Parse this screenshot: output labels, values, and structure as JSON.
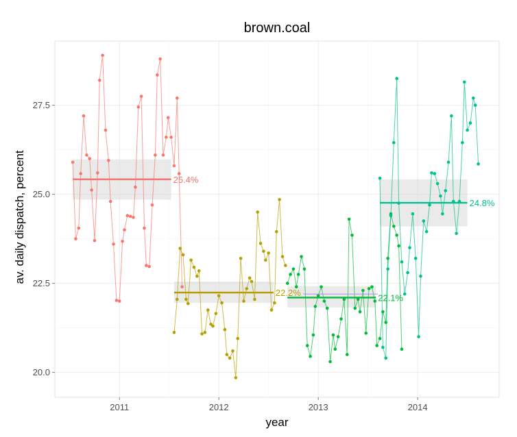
{
  "chart_data": {
    "type": "line",
    "title": "brown.coal",
    "xlabel": "year",
    "ylabel": "av. daily dispatch, percent",
    "xlim": [
      2010.35,
      2014.82
    ],
    "ylim": [
      19.3,
      29.3
    ],
    "x_ticks": [
      {
        "value": 2011,
        "label": "2011"
      },
      {
        "value": 2012,
        "label": "2012"
      },
      {
        "value": 2013,
        "label": "2013"
      },
      {
        "value": 2014,
        "label": "2014"
      }
    ],
    "y_ticks": [
      {
        "value": 20.0,
        "label": "20.0"
      },
      {
        "value": 22.5,
        "label": "22.5"
      },
      {
        "value": 25.0,
        "label": "25.0"
      },
      {
        "value": 27.5,
        "label": "27.5"
      }
    ],
    "grid": true,
    "legend": "none",
    "panel_background": "#ffffff",
    "grid_color": "#ebebeb",
    "band_color": "#d9d9d9",
    "series": [
      {
        "color": "#F8766D",
        "points": [
          [
            2010.53,
            25.9
          ],
          [
            2010.56,
            23.75
          ],
          [
            2010.59,
            24.05
          ],
          [
            2010.61,
            25.58
          ],
          [
            2010.64,
            27.2
          ],
          [
            2010.67,
            26.1
          ],
          [
            2010.7,
            26.0
          ],
          [
            2010.72,
            25.12
          ],
          [
            2010.75,
            23.7
          ],
          [
            2010.78,
            25.6
          ],
          [
            2010.8,
            28.2
          ],
          [
            2010.83,
            28.9
          ],
          [
            2010.86,
            26.8
          ],
          [
            2010.89,
            25.95
          ],
          [
            2010.91,
            24.8
          ],
          [
            2010.94,
            23.6
          ],
          [
            2010.97,
            22.02
          ],
          [
            2011.0,
            22.0
          ],
          [
            2011.03,
            23.68
          ],
          [
            2011.05,
            24.0
          ],
          [
            2011.08,
            24.4
          ],
          [
            2011.11,
            24.38
          ],
          [
            2011.14,
            24.35
          ],
          [
            2011.16,
            25.2
          ],
          [
            2011.19,
            27.45
          ],
          [
            2011.22,
            27.75
          ],
          [
            2011.25,
            24.05
          ],
          [
            2011.27,
            23.0
          ],
          [
            2011.3,
            22.97
          ],
          [
            2011.33,
            24.7
          ],
          [
            2011.36,
            26.1
          ],
          [
            2011.38,
            28.35
          ],
          [
            2011.41,
            28.8
          ],
          [
            2011.44,
            26.1
          ],
          [
            2011.47,
            26.6
          ],
          [
            2011.49,
            27.15
          ],
          [
            2011.52,
            26.6
          ],
          [
            2011.55,
            25.8
          ],
          [
            2011.58,
            27.7
          ],
          [
            2011.6,
            25.58
          ],
          [
            2011.63,
            22.4
          ]
        ],
        "mean": {
          "value": 25.42,
          "x_start": 2010.53,
          "x_end": 2011.52,
          "band": [
            24.85,
            25.98
          ],
          "label": "25.4%"
        }
      },
      {
        "color": "#B79F00",
        "points": [
          [
            2011.55,
            21.12
          ],
          [
            2011.58,
            22.05
          ],
          [
            2011.61,
            23.48
          ],
          [
            2011.64,
            23.3
          ],
          [
            2011.67,
            22.05
          ],
          [
            2011.69,
            21.93
          ],
          [
            2011.72,
            23.15
          ],
          [
            2011.75,
            22.95
          ],
          [
            2011.78,
            22.7
          ],
          [
            2011.8,
            22.85
          ],
          [
            2011.83,
            21.08
          ],
          [
            2011.86,
            21.12
          ],
          [
            2011.89,
            21.75
          ],
          [
            2011.92,
            21.35
          ],
          [
            2011.94,
            21.3
          ],
          [
            2011.97,
            21.65
          ],
          [
            2012.0,
            22.15
          ],
          [
            2012.03,
            21.95
          ],
          [
            2012.06,
            21.2
          ],
          [
            2012.08,
            20.5
          ],
          [
            2012.11,
            20.4
          ],
          [
            2012.14,
            20.6
          ],
          [
            2012.17,
            19.85
          ],
          [
            2012.19,
            20.95
          ],
          [
            2012.22,
            23.2
          ],
          [
            2012.25,
            22.0
          ],
          [
            2012.28,
            22.35
          ],
          [
            2012.31,
            22.65
          ],
          [
            2012.33,
            22.55
          ],
          [
            2012.36,
            22.05
          ],
          [
            2012.39,
            24.5
          ],
          [
            2012.42,
            23.62
          ],
          [
            2012.45,
            23.4
          ],
          [
            2012.47,
            23.15
          ],
          [
            2012.5,
            23.35
          ],
          [
            2012.53,
            21.75
          ],
          [
            2012.56,
            21.95
          ],
          [
            2012.58,
            23.95
          ],
          [
            2012.61,
            24.85
          ],
          [
            2012.64,
            23.25
          ],
          [
            2012.67,
            23.0
          ]
        ],
        "mean": {
          "value": 22.24,
          "x_start": 2011.55,
          "x_end": 2012.55,
          "band": [
            21.95,
            22.55
          ],
          "label": "22.2%"
        }
      },
      {
        "color": "#00BA38",
        "points": [
          [
            2012.69,
            22.5
          ],
          [
            2012.72,
            22.75
          ],
          [
            2012.75,
            22.9
          ],
          [
            2012.78,
            22.4
          ],
          [
            2012.8,
            22.75
          ],
          [
            2012.83,
            23.25
          ],
          [
            2012.86,
            22.9
          ],
          [
            2012.89,
            20.75
          ],
          [
            2012.92,
            20.45
          ],
          [
            2012.95,
            21.05
          ],
          [
            2012.97,
            21.85
          ],
          [
            2013.0,
            22.15
          ],
          [
            2013.03,
            22.4
          ],
          [
            2013.06,
            22.0
          ],
          [
            2013.09,
            21.8
          ],
          [
            2013.12,
            20.3
          ],
          [
            2013.15,
            21.05
          ],
          [
            2013.17,
            20.65
          ],
          [
            2013.2,
            21.0
          ],
          [
            2013.23,
            21.5
          ],
          [
            2013.26,
            22.05
          ],
          [
            2013.29,
            20.5
          ],
          [
            2013.31,
            24.3
          ],
          [
            2013.34,
            23.85
          ],
          [
            2013.37,
            21.8
          ],
          [
            2013.4,
            22.05
          ],
          [
            2013.42,
            21.7
          ],
          [
            2013.45,
            22.3
          ],
          [
            2013.48,
            21.1
          ],
          [
            2013.51,
            22.35
          ],
          [
            2013.54,
            22.4
          ],
          [
            2013.57,
            22.0
          ],
          [
            2013.59,
            20.75
          ],
          [
            2013.62,
            20.95
          ],
          [
            2013.65,
            21.7
          ],
          [
            2013.68,
            21.4
          ],
          [
            2013.7,
            23.2
          ],
          [
            2013.73,
            24.45
          ],
          [
            2013.76,
            24.1
          ],
          [
            2013.79,
            23.85
          ],
          [
            2013.81,
            23.55
          ],
          [
            2013.84,
            20.65
          ]
        ],
        "mean": {
          "value": 22.1,
          "x_start": 2012.69,
          "x_end": 2013.58,
          "band": [
            21.82,
            22.42
          ],
          "label": "22.1%"
        }
      },
      {
        "color": "#00C08B",
        "points": [
          [
            2013.62,
            25.45
          ],
          [
            2013.65,
            20.7
          ],
          [
            2013.68,
            20.4
          ],
          [
            2013.7,
            22.9
          ],
          [
            2013.73,
            24.4
          ],
          [
            2013.76,
            26.45
          ],
          [
            2013.79,
            28.25
          ],
          [
            2013.81,
            24.75
          ],
          [
            2013.84,
            23.1
          ],
          [
            2013.87,
            22.2
          ],
          [
            2013.9,
            22.8
          ],
          [
            2013.92,
            23.5
          ],
          [
            2013.95,
            24.45
          ],
          [
            2013.98,
            23.2
          ],
          [
            2014.01,
            21.0
          ],
          [
            2014.03,
            22.7
          ],
          [
            2014.06,
            24.25
          ],
          [
            2014.09,
            23.95
          ],
          [
            2014.12,
            24.7
          ],
          [
            2014.14,
            25.6
          ],
          [
            2014.17,
            25.58
          ],
          [
            2014.2,
            25.3
          ],
          [
            2014.23,
            24.95
          ],
          [
            2014.25,
            24.45
          ],
          [
            2014.28,
            25.1
          ],
          [
            2014.31,
            25.9
          ],
          [
            2014.34,
            27.2
          ],
          [
            2014.36,
            24.8
          ],
          [
            2014.39,
            23.9
          ],
          [
            2014.42,
            24.8
          ],
          [
            2014.45,
            26.45
          ],
          [
            2014.47,
            28.15
          ],
          [
            2014.5,
            26.8
          ],
          [
            2014.53,
            27.0
          ],
          [
            2014.56,
            27.7
          ],
          [
            2014.58,
            27.5
          ],
          [
            2014.61,
            25.85
          ]
        ],
        "mean": {
          "value": 24.76,
          "x_start": 2013.62,
          "x_end": 2014.5,
          "band": [
            24.1,
            25.42
          ],
          "label": "24.8%"
        }
      },
      {
        "color": "#C77CFF",
        "points": [],
        "mean": {
          "value": 22.2,
          "x_start": 2012.85,
          "x_end": 2013.6,
          "band": null,
          "label": ""
        }
      }
    ]
  }
}
